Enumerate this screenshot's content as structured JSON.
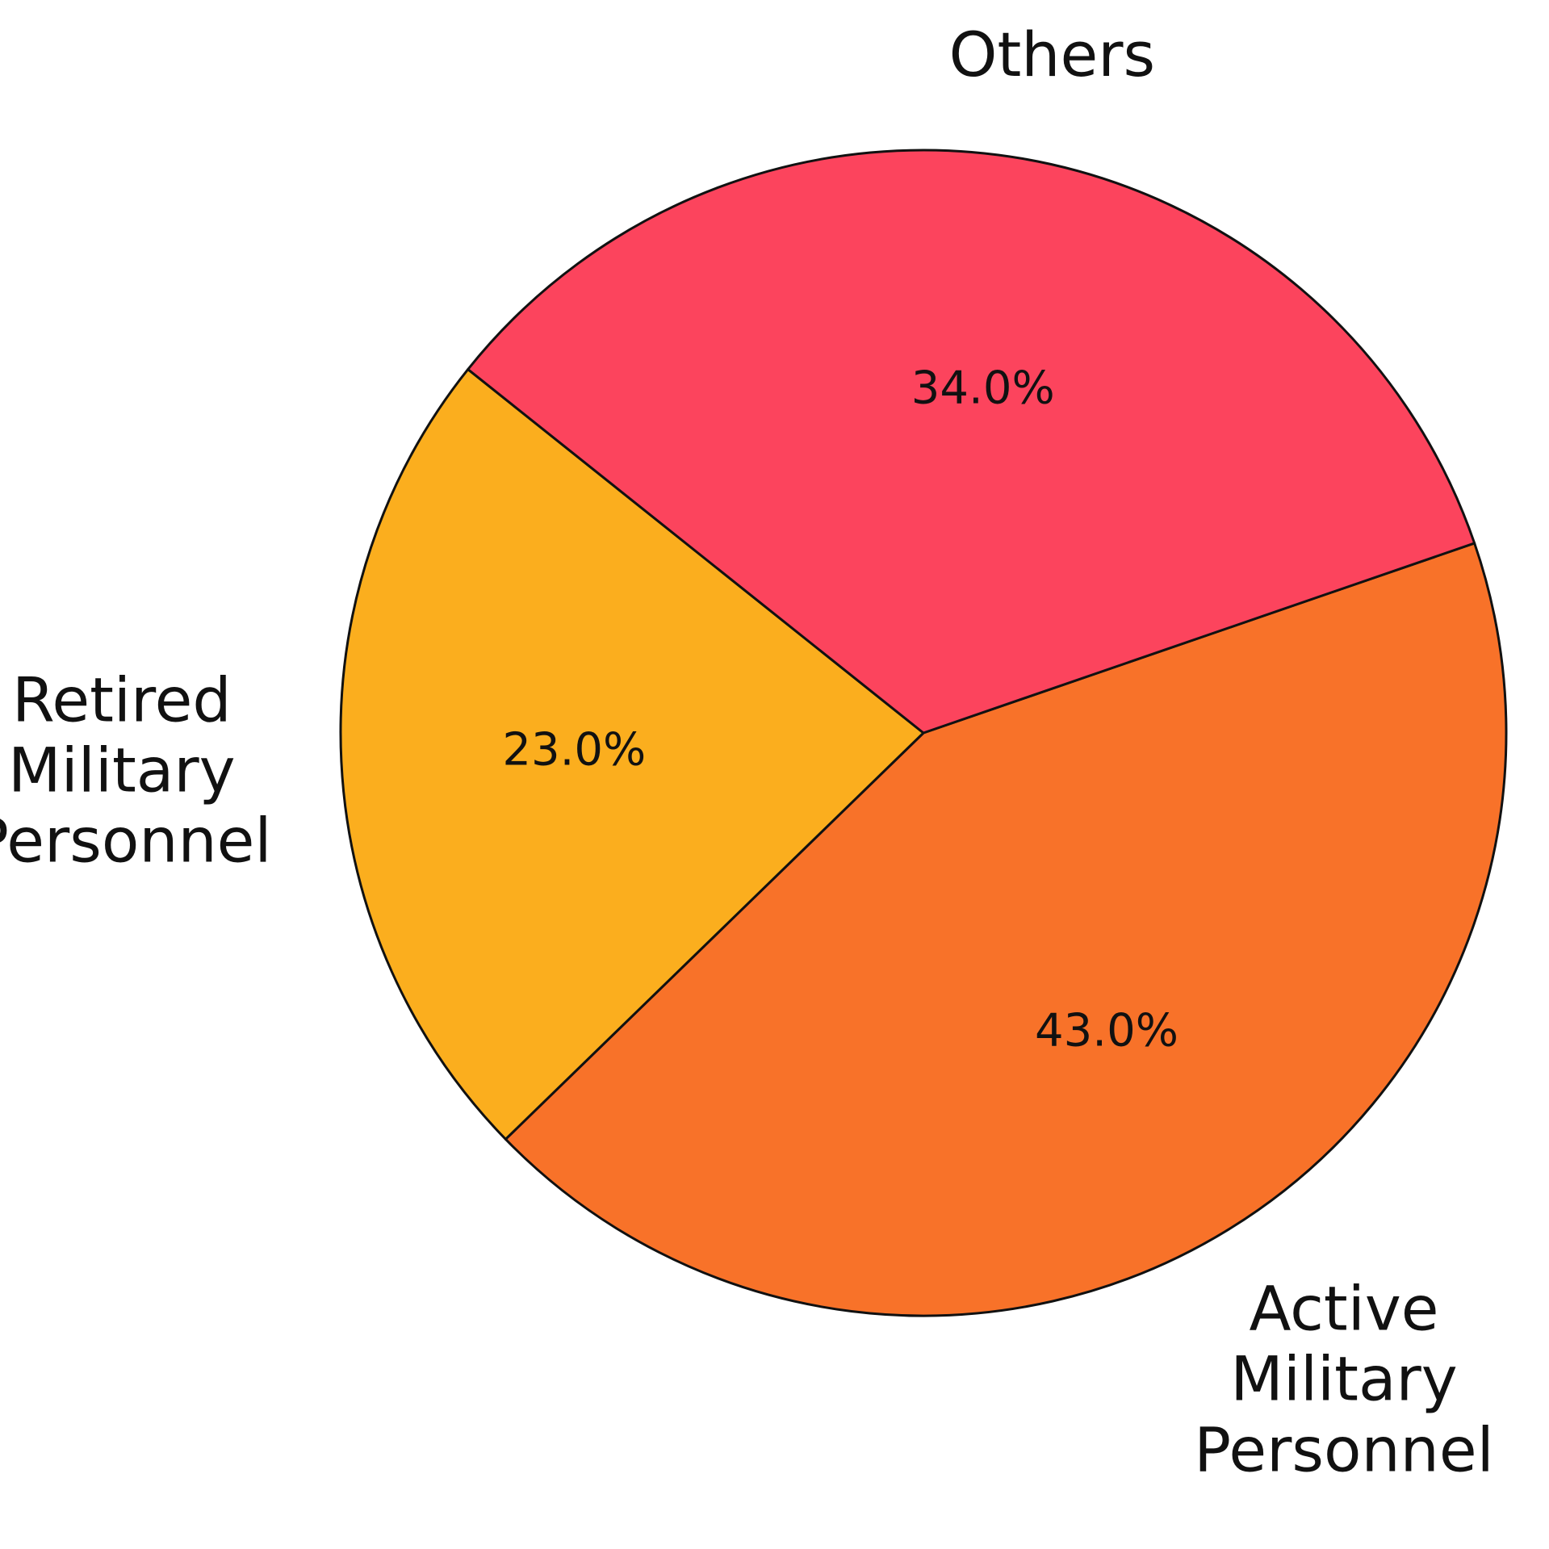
{
  "chart_data": {
    "type": "pie",
    "categories": [
      "Active Military\nPersonnel",
      "Retired\nMilitary\nPersonnel",
      "Others"
    ],
    "values": [
      43.0,
      23.0,
      34.0
    ],
    "value_labels": [
      "43.0%",
      "23.0%",
      "34.0%"
    ],
    "colors": [
      "#F87229",
      "#FBAE1E",
      "#FC445D"
    ]
  }
}
